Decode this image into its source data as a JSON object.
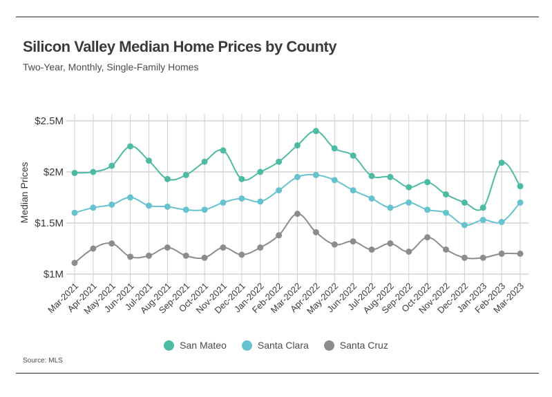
{
  "header": {
    "title": "Silicon Valley Median Home Prices by County",
    "subtitle": "Two-Year, Monthly, Single-Family Homes"
  },
  "footer": {
    "source": "Source:  MLS"
  },
  "chart_data": {
    "type": "line",
    "ylabel": "Median Prices",
    "ylim": [
      1000000,
      2500000
    ],
    "yticks": [
      1000000,
      1500000,
      2000000,
      2500000
    ],
    "ytick_labels": [
      "$1M",
      "$1.5M",
      "$2M",
      "$2.5M"
    ],
    "grid": "vertical and horizontal",
    "legend_position": "bottom",
    "categories": [
      "Mar-2021",
      "Apr-2021",
      "May-2021",
      "Jun-2021",
      "Jul-2021",
      "Aug-2021",
      "Sep-2021",
      "Oct-2021",
      "Nov-2021",
      "Dec-2021",
      "Jan-2022",
      "Feb-2022",
      "Mar-2022",
      "Apr-2022",
      "May-2022",
      "Jun-2022",
      "Jul-2022",
      "Aug-2022",
      "Sep-2022",
      "Oct-2022",
      "Nov-2022",
      "Dec-2022",
      "Jan-2023",
      "Feb-2023",
      "Mar-2023"
    ],
    "series": [
      {
        "name": "San Mateo",
        "color": "#4dbba3",
        "values": [
          1990000,
          2000000,
          2060000,
          2250000,
          2110000,
          1930000,
          1970000,
          2100000,
          2210000,
          1930000,
          2000000,
          2100000,
          2260000,
          2400000,
          2230000,
          2160000,
          1960000,
          1950000,
          1850000,
          1900000,
          1780000,
          1700000,
          1650000,
          2090000,
          1860000
        ]
      },
      {
        "name": "Santa Clara",
        "color": "#66c2cf",
        "values": [
          1600000,
          1650000,
          1680000,
          1750000,
          1670000,
          1660000,
          1630000,
          1630000,
          1700000,
          1740000,
          1710000,
          1820000,
          1950000,
          1970000,
          1920000,
          1820000,
          1740000,
          1650000,
          1700000,
          1630000,
          1600000,
          1480000,
          1530000,
          1510000,
          1700000
        ]
      },
      {
        "name": "Santa Cruz",
        "color": "#8c8c8c",
        "values": [
          1110000,
          1250000,
          1300000,
          1170000,
          1180000,
          1260000,
          1180000,
          1160000,
          1260000,
          1190000,
          1260000,
          1380000,
          1590000,
          1410000,
          1290000,
          1320000,
          1240000,
          1300000,
          1220000,
          1360000,
          1240000,
          1160000,
          1160000,
          1200000,
          1200000
        ]
      }
    ]
  }
}
